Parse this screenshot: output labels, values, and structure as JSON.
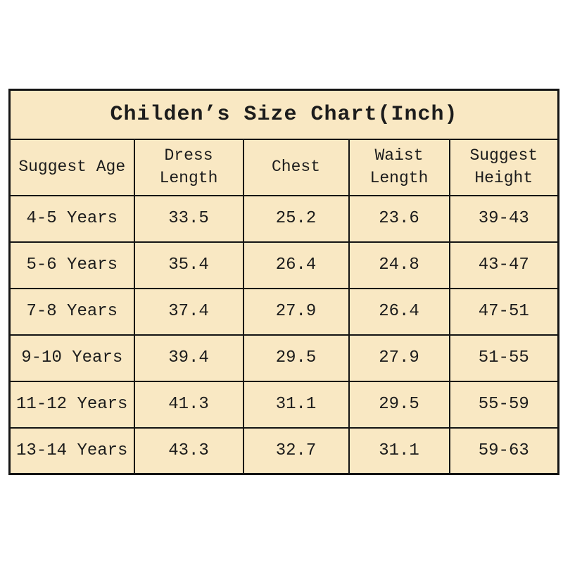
{
  "page": {
    "background": "#ffffff"
  },
  "table": {
    "title": "Childen’s Size Chart(Inch)",
    "unit": "Inch",
    "colors": {
      "cell_background": "#f9e8c3",
      "border": "#141414",
      "header_text": "#d42c2c",
      "body_text": "#1c1c1c",
      "title_text": "#1c1c1c"
    },
    "headers": [
      "Suggest Age",
      "Dress Length",
      "Chest",
      "Waist Length",
      "Suggest Height"
    ],
    "rows": [
      [
        "4-5 Years",
        "33.5",
        "25.2",
        "23.6",
        "39-43"
      ],
      [
        "5-6 Years",
        "35.4",
        "26.4",
        "24.8",
        "43-47"
      ],
      [
        "7-8 Years",
        "37.4",
        "27.9",
        "26.4",
        "47-51"
      ],
      [
        "9-10 Years",
        "39.4",
        "29.5",
        "27.9",
        "51-55"
      ],
      [
        "11-12 Years",
        "41.3",
        "31.1",
        "29.5",
        "55-59"
      ],
      [
        "13-14 Years",
        "43.3",
        "32.7",
        "31.1",
        "59-63"
      ]
    ]
  }
}
